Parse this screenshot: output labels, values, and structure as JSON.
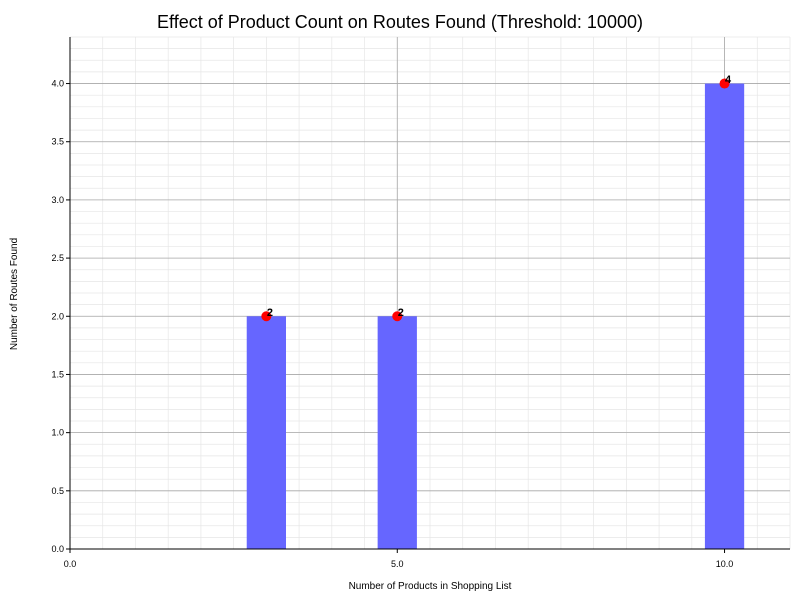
{
  "chart_data": {
    "type": "bar",
    "title": "Effect of Product Count on Routes Found (Threshold: 10000)",
    "xlabel": "Number of Products in Shopping List",
    "ylabel": "Number of Routes Found",
    "x": [
      3,
      5,
      10
    ],
    "values": [
      2,
      2,
      4
    ],
    "data_labels": [
      "2",
      "2",
      "4"
    ],
    "xlim": [
      0,
      11
    ],
    "ylim": [
      0,
      4.4
    ],
    "x_ticks": [
      0,
      5,
      10
    ],
    "x_tick_labels": [
      "0.0",
      "5.0",
      "10.0"
    ],
    "y_ticks": [
      0,
      0.5,
      1,
      1.5,
      2,
      2.5,
      3,
      3.5,
      4
    ],
    "y_tick_labels": [
      "0.0",
      "0.5",
      "1.0",
      "1.5",
      "2.0",
      "2.5",
      "3.0",
      "3.5",
      "4.0"
    ],
    "grid": true,
    "minor_grid": true,
    "bar_color": "#6666ff",
    "marker_color": "#ff0000",
    "overlay": "scatter markers at bar tops"
  }
}
